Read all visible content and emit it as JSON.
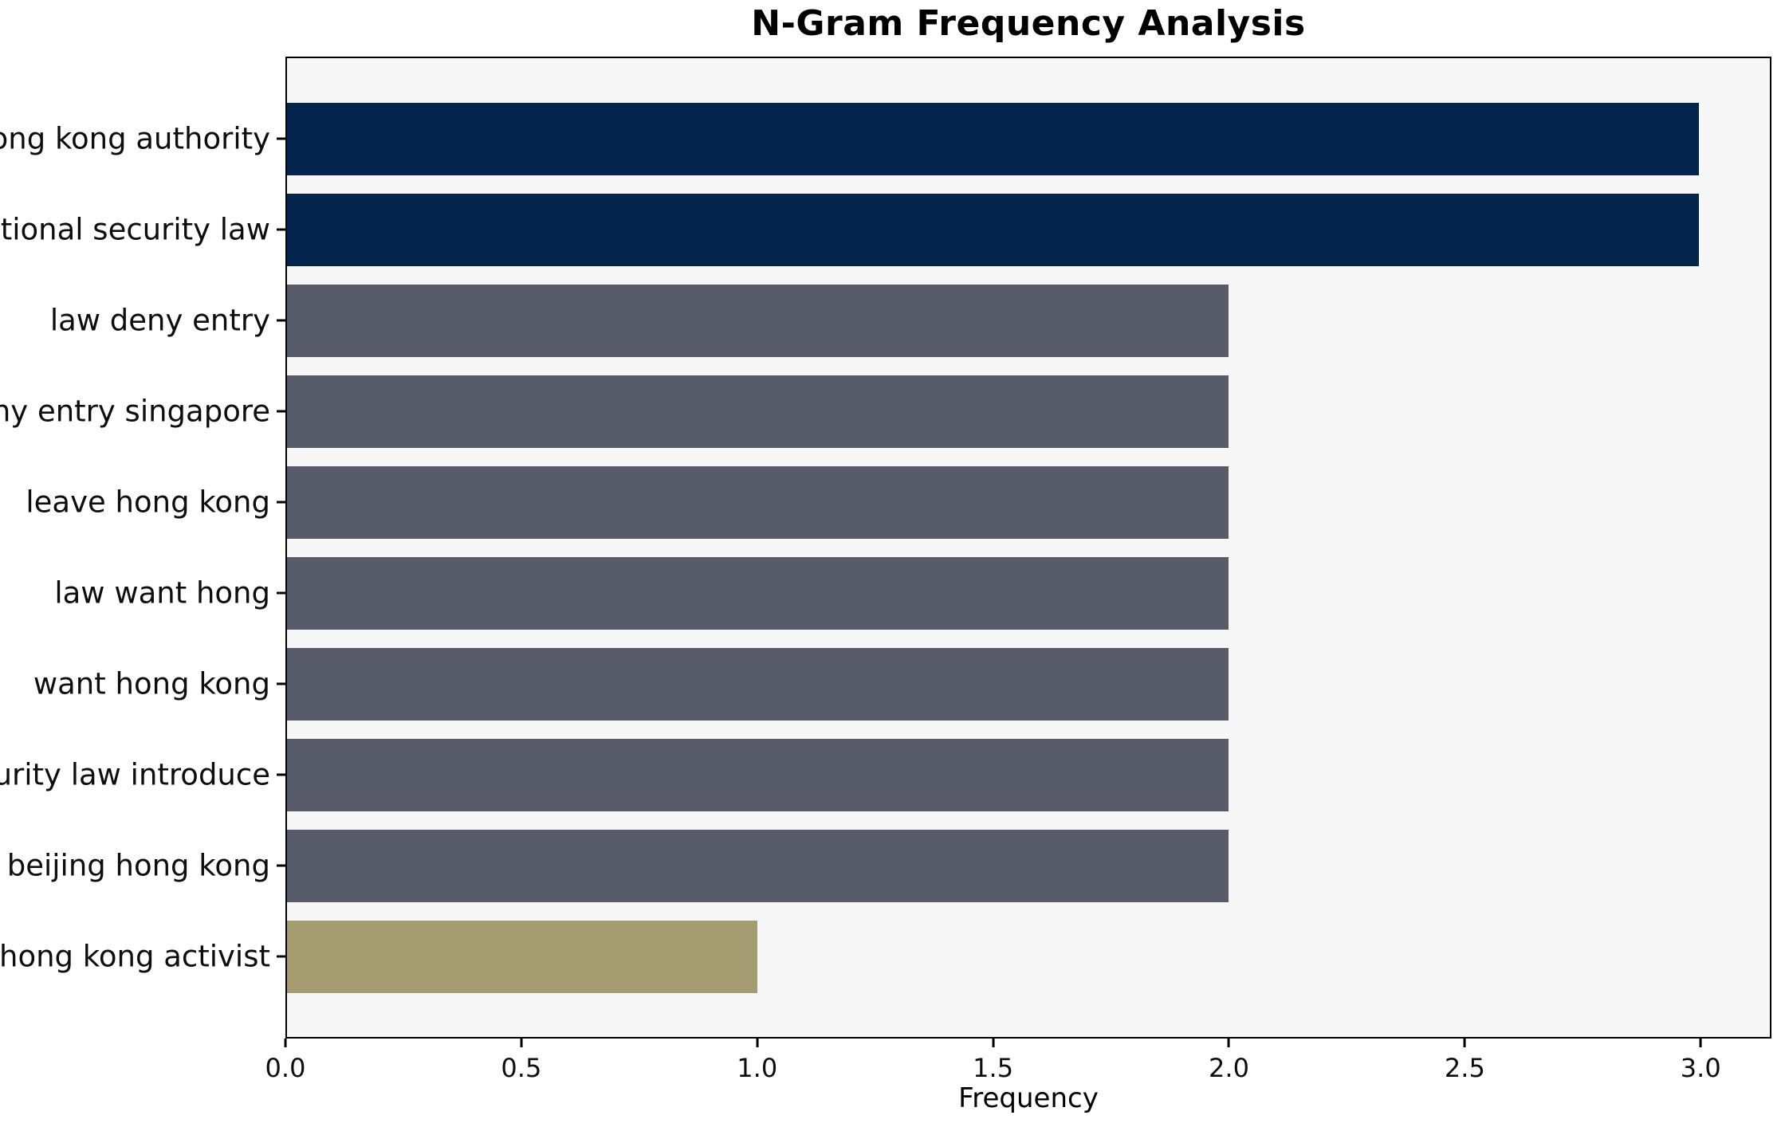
{
  "chart_data": {
    "type": "bar",
    "orientation": "horizontal",
    "title": "N-Gram Frequency Analysis",
    "xlabel": "Frequency",
    "ylabel": "",
    "categories": [
      "hong kong authority",
      "national security law",
      "law deny entry",
      "deny entry singapore",
      "leave hong kong",
      "law want hong",
      "want hong kong",
      "security law introduce",
      "beijing hong kong",
      "hong kong activist"
    ],
    "values": [
      3,
      3,
      2,
      2,
      2,
      2,
      2,
      2,
      2,
      1
    ],
    "bar_colors": [
      "#03254d",
      "#03254d",
      "#565a69",
      "#565a69",
      "#565a69",
      "#565a69",
      "#565a69",
      "#565a69",
      "#565a69",
      "#a69c72"
    ],
    "xlim": [
      0,
      3.15
    ],
    "xticks": [
      0,
      0.5,
      1,
      1.5,
      2,
      2.5,
      3
    ],
    "xtick_labels": [
      "0.0",
      "0.5",
      "1.0",
      "1.5",
      "2.0",
      "2.5",
      "3.0"
    ],
    "grid": false,
    "legend_position": "none",
    "plot_bg": "#f7f7f8",
    "figure_bg": "#ffffff",
    "axis_color": "#000000"
  }
}
